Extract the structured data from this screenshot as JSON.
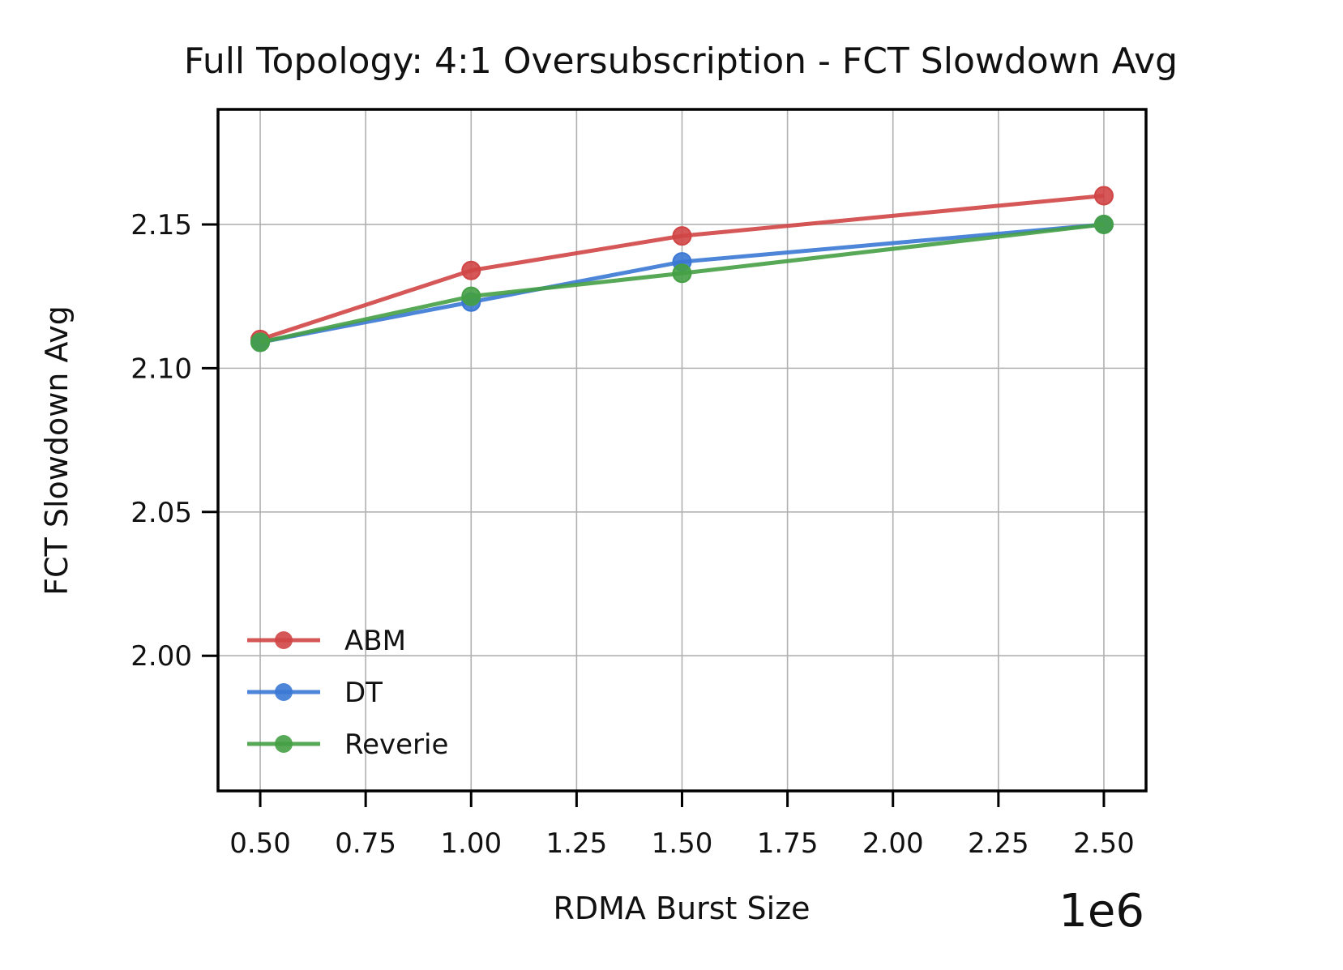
{
  "chart_data": {
    "type": "line",
    "title": "Full Topology: 4:1 Oversubscription - FCT Slowdown Avg",
    "xlabel": "RDMA Burst Size",
    "ylabel": "FCT Slowdown Avg",
    "x_offset_label": "1e6",
    "x": [
      500000,
      1000000,
      1500000,
      2500000
    ],
    "xlim": [
      400000,
      2600000
    ],
    "ylim": [
      1.953,
      2.19
    ],
    "xticks": [
      500000,
      750000,
      1000000,
      1250000,
      1500000,
      1750000,
      2000000,
      2250000,
      2500000
    ],
    "xtick_labels": [
      "0.50",
      "0.75",
      "1.00",
      "1.25",
      "1.50",
      "1.75",
      "2.00",
      "2.25",
      "2.50"
    ],
    "yticks": [
      2.0,
      2.05,
      2.1,
      2.15
    ],
    "ytick_labels": [
      "2.00",
      "2.05",
      "2.10",
      "2.15"
    ],
    "grid": true,
    "legend_position": "lower-left",
    "series": [
      {
        "name": "ABM",
        "color": "#d04545",
        "values": [
          2.11,
          2.134,
          2.146,
          2.16
        ]
      },
      {
        "name": "DT",
        "color": "#3a78d4",
        "values": [
          2.109,
          2.123,
          2.137,
          2.15
        ]
      },
      {
        "name": "Reverie",
        "color": "#45a045",
        "values": [
          2.109,
          2.125,
          2.133,
          2.15
        ]
      }
    ]
  }
}
